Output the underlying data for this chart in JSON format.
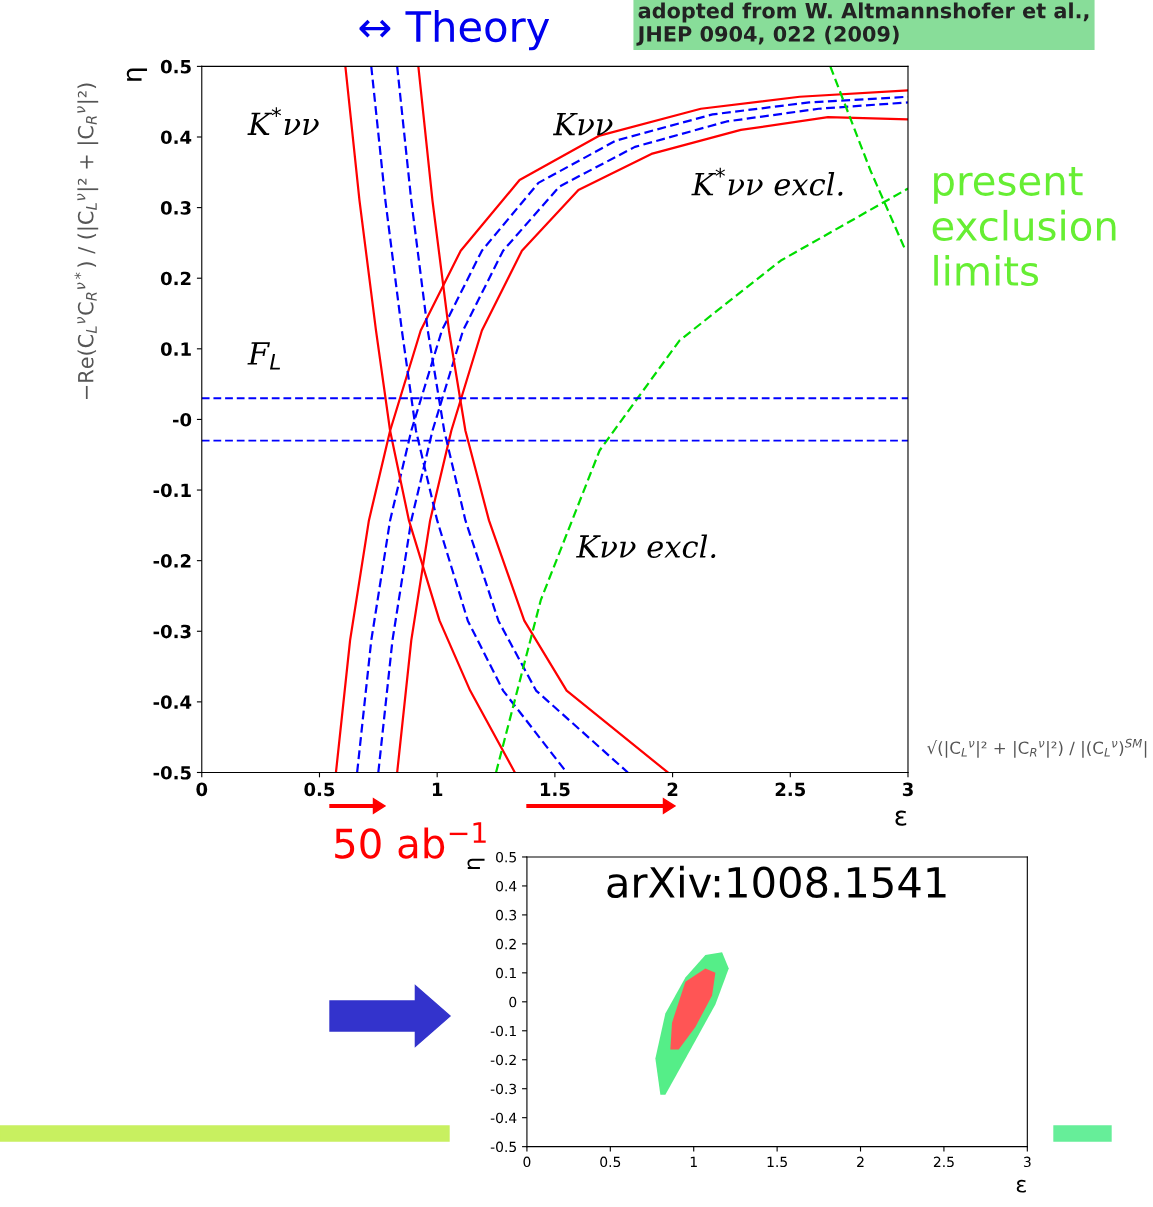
{
  "chart_data": [
    {
      "type": "line",
      "xlabel": "ε",
      "ylabel": "η",
      "xlim": [
        0,
        3
      ],
      "ylim": [
        -0.5,
        0.5
      ],
      "xticks": [
        0,
        0.5,
        1,
        1.5,
        2,
        2.5,
        3
      ],
      "yticks": [
        -0.5,
        -0.4,
        -0.3,
        -0.2,
        -0.1,
        {
          "value": 0,
          "label": "-0"
        },
        0.1,
        0.2,
        0.3,
        0.4,
        0.5
      ],
      "grid": false,
      "series": [
        {
          "color": "#ff0000",
          "line_style": "solid",
          "x": [
            0.57,
            0.63,
            0.71,
            0.8,
            0.93,
            1.1,
            1.35,
            1.69,
            2.12,
            2.54,
            3.0
          ],
          "values": [
            -0.5,
            -0.313,
            -0.143,
            -0.016,
            0.126,
            0.239,
            0.339,
            0.402,
            0.44,
            0.457,
            0.466
          ]
        },
        {
          "color": "#0000ff",
          "line_style": "dashed",
          "x": [
            0.66,
            0.72,
            0.8,
            0.89,
            1.02,
            1.19,
            1.43,
            1.76,
            2.17,
            2.58,
            3.0
          ],
          "values": [
            -0.5,
            -0.313,
            -0.143,
            -0.016,
            0.126,
            0.239,
            0.335,
            0.395,
            0.432,
            0.449,
            0.457
          ]
        },
        {
          "color": "#0000ff",
          "line_style": "dashed",
          "x": [
            0.75,
            0.81,
            0.89,
            0.98,
            1.11,
            1.28,
            1.52,
            1.84,
            2.23,
            2.62,
            3.0
          ],
          "values": [
            -0.5,
            -0.313,
            -0.143,
            -0.016,
            0.126,
            0.239,
            0.33,
            0.386,
            0.422,
            0.44,
            0.449
          ]
        },
        {
          "color": "#ff0000",
          "line_style": "solid",
          "x": [
            0.83,
            0.89,
            0.97,
            1.06,
            1.19,
            1.36,
            1.6,
            1.91,
            2.29,
            2.66,
            3.0
          ],
          "values": [
            -0.5,
            -0.313,
            -0.143,
            -0.016,
            0.126,
            0.239,
            0.325,
            0.376,
            0.41,
            0.428,
            0.425
          ]
        },
        {
          "color": "#ff0000",
          "line_style": "solid",
          "x": [
            0.61,
            0.67,
            0.74,
            0.8,
            0.88,
            1.01,
            1.14,
            1.33
          ],
          "values": [
            0.5,
            0.31,
            0.126,
            -0.016,
            -0.143,
            -0.285,
            -0.384,
            -0.5
          ]
        },
        {
          "color": "#0000ff",
          "line_style": "dashed",
          "x": [
            0.72,
            0.78,
            0.85,
            0.91,
            1.0,
            1.13,
            1.28,
            1.55
          ],
          "values": [
            0.5,
            0.31,
            0.126,
            -0.016,
            -0.143,
            -0.285,
            -0.384,
            -0.5
          ]
        },
        {
          "color": "#0000ff",
          "line_style": "dashed",
          "x": [
            0.83,
            0.89,
            0.96,
            1.03,
            1.12,
            1.26,
            1.42,
            1.81
          ],
          "values": [
            0.5,
            0.31,
            0.126,
            -0.016,
            -0.143,
            -0.285,
            -0.384,
            -0.5
          ]
        },
        {
          "color": "#ff0000",
          "line_style": "solid",
          "x": [
            0.92,
            0.98,
            1.05,
            1.12,
            1.22,
            1.37,
            1.55,
            1.98
          ],
          "values": [
            0.5,
            0.31,
            0.126,
            -0.016,
            -0.143,
            -0.285,
            -0.384,
            -0.5
          ]
        },
        {
          "color": "#00dd00",
          "line_style": "dashed",
          "x": [
            1.25,
            1.44,
            1.69,
            2.03,
            2.46,
            3.0
          ],
          "values": [
            -0.5,
            -0.256,
            -0.044,
            0.112,
            0.225,
            0.327
          ]
        },
        {
          "color": "#00dd00",
          "line_style": "dashed",
          "x": [
            2.67,
            2.84,
            2.99
          ],
          "values": [
            0.5,
            0.353,
            0.239
          ]
        }
      ],
      "ref_lines": [
        {
          "axis": "y",
          "value": 0.03,
          "color": "#0000ff",
          "line_style": "dashed"
        },
        {
          "axis": "y",
          "value": -0.03,
          "color": "#0000ff",
          "line_style": "dashed"
        }
      ],
      "annotations": [
        "K$^{*}$νν",
        "Kνν",
        "K$^{*}$νν excl.",
        "F$_{L}$",
        "Kνν excl.",
        "−Re(C$_{L}$$^{ν}$C$_{R}$$^{ν*}$) / (|C$_{L}$$^{ν}$|² + |C$_{R}$$^{ν}$|²)",
        "√(|C$_{L}$$^{ν}$|² + |C$_{R}$$^{ν}$|²) / |(C$_{L}$$^{ν}$)$^{SM}$|",
        "↔ Theory",
        "adopted from W. Altmannshofer et al.,\nJHEP 0904, 022 (2009)",
        "present\nexclusion\nlimits",
        "50 ab$^{−1}$"
      ]
    },
    {
      "type": "area",
      "title": "arXiv:1008.1541",
      "xlabel": "ε",
      "ylabel": "η",
      "xlim": [
        0,
        3
      ],
      "ylim": [
        -0.5,
        0.5
      ],
      "xticks": [
        0,
        0.5,
        1,
        1.5,
        2,
        2.5,
        3
      ],
      "yticks": [
        -0.5,
        -0.4,
        -0.3,
        -0.2,
        -0.1,
        0,
        0.1,
        0.2,
        0.3,
        0.4,
        0.5
      ],
      "grid": false,
      "series": [
        {
          "color": "#55ee88",
          "x": [
            0.8,
            0.77,
            0.83,
            0.95,
            1.07,
            1.17,
            1.21,
            1.13,
            1.01,
            0.89,
            0.83
          ],
          "values": [
            -0.321,
            -0.196,
            -0.04,
            0.084,
            0.162,
            0.171,
            0.115,
            -0.009,
            -0.134,
            -0.259,
            -0.321
          ]
        },
        {
          "color": "#ff5555",
          "x": [
            0.86,
            0.87,
            0.95,
            1.07,
            1.13,
            1.11,
            1.01,
            0.91
          ],
          "values": [
            -0.165,
            -0.072,
            0.069,
            0.115,
            0.1,
            0.022,
            -0.087,
            -0.165
          ]
        }
      ]
    }
  ]
}
